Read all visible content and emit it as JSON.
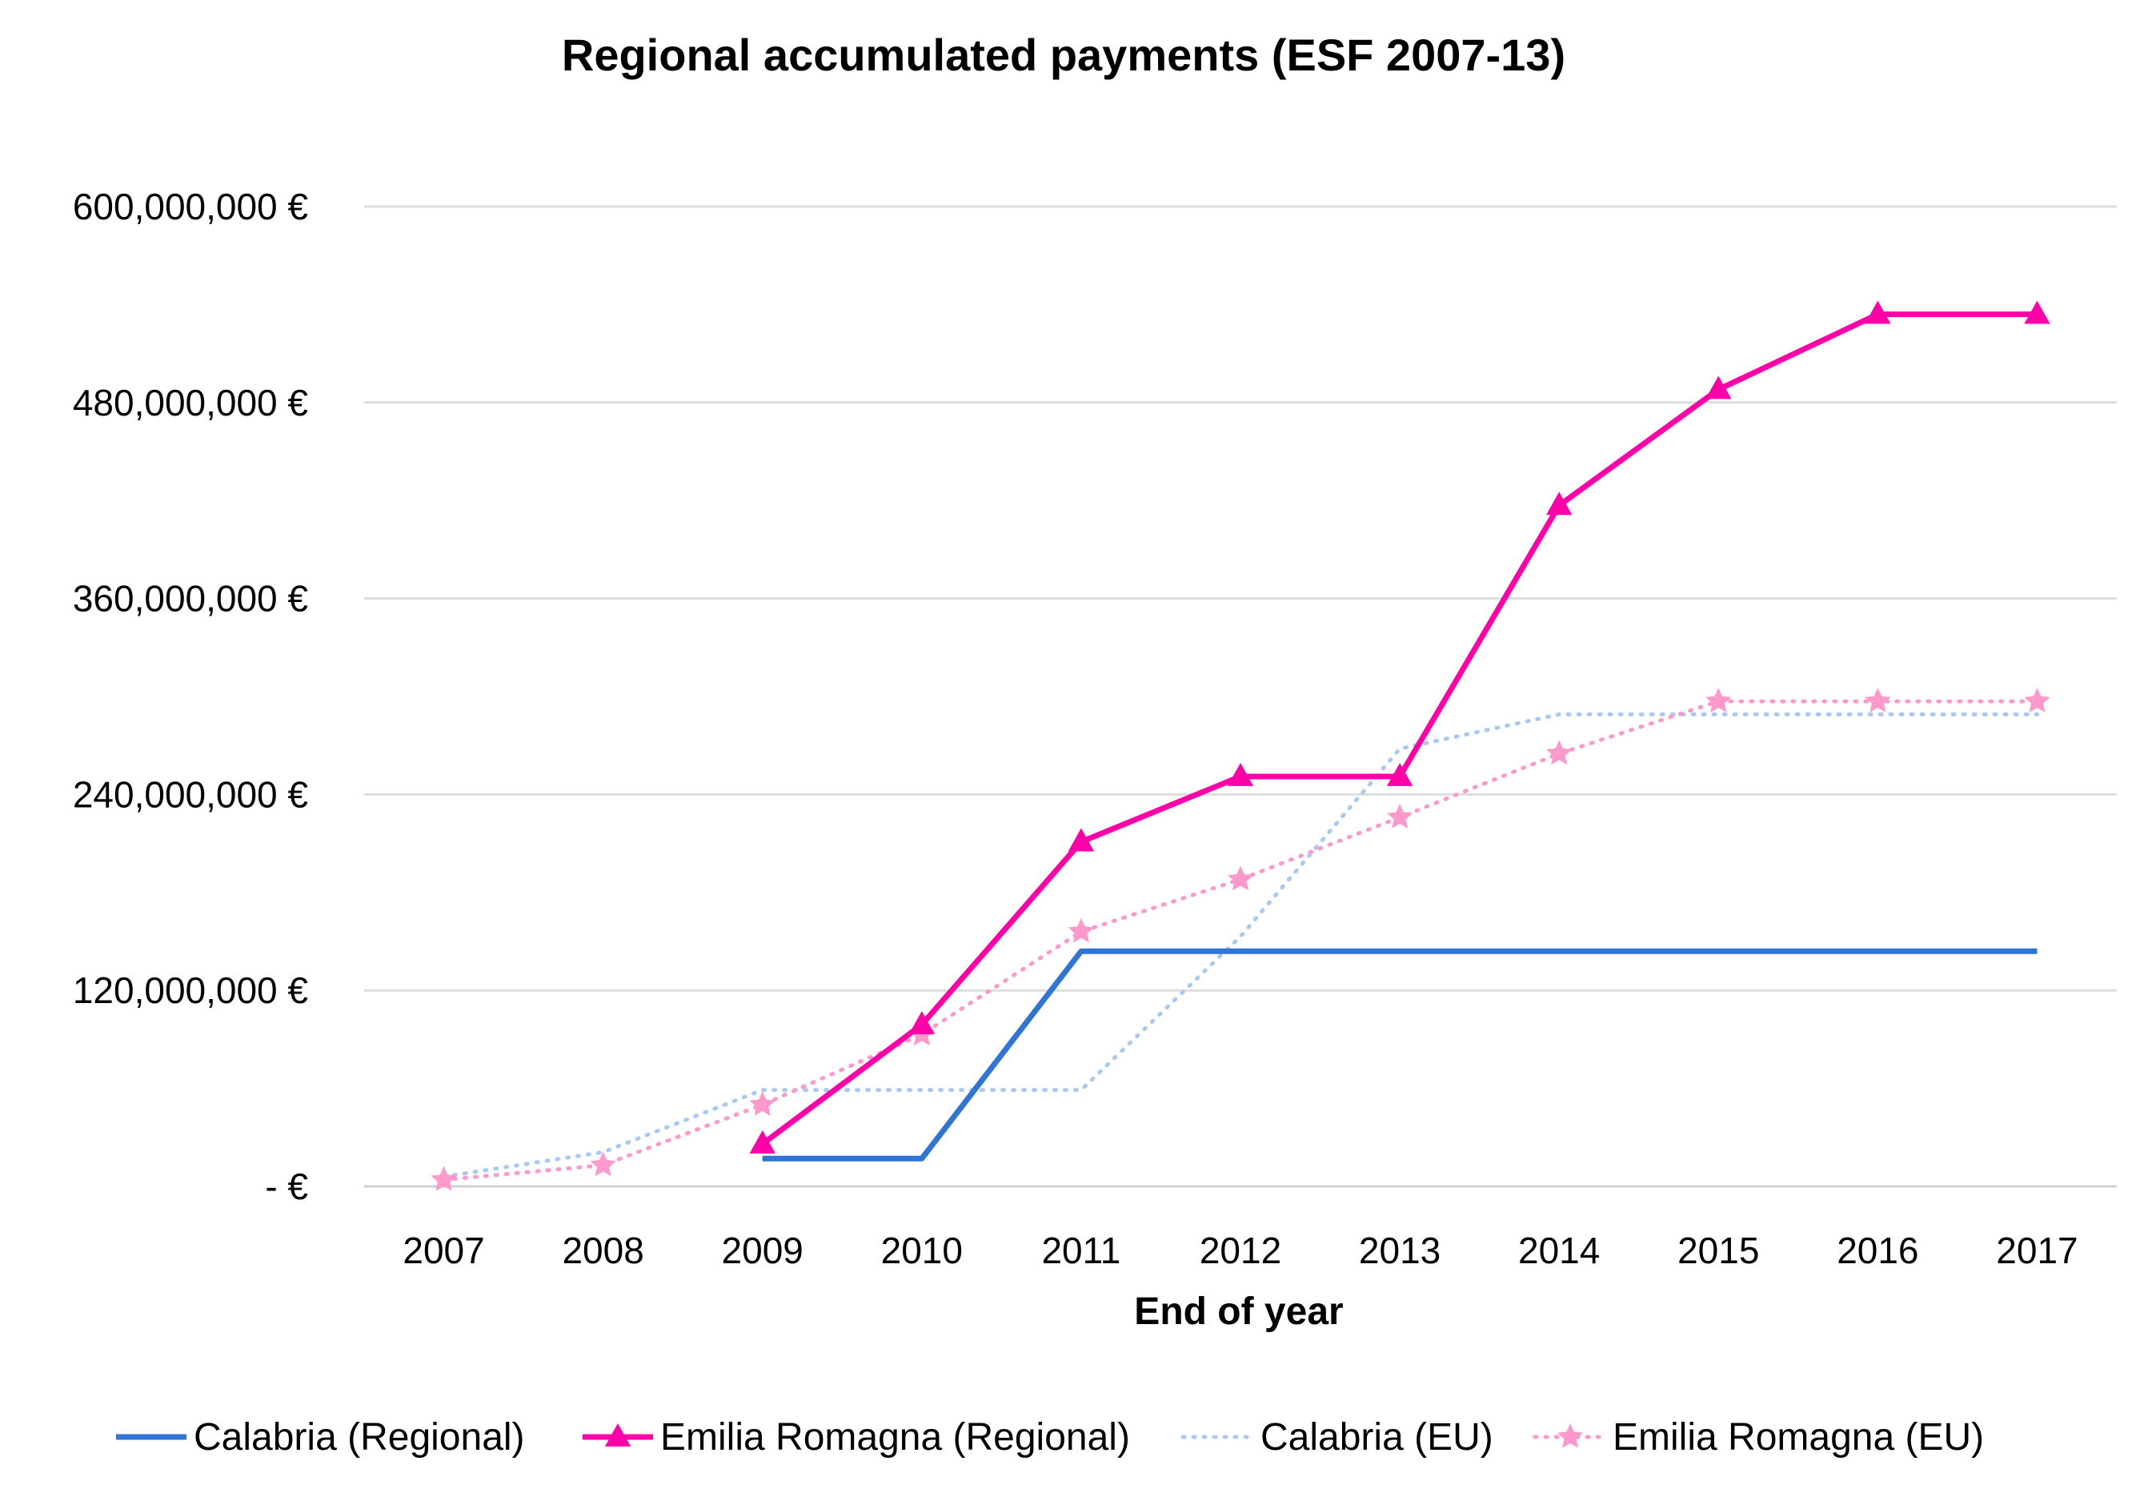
{
  "chart_data": {
    "type": "line",
    "title": "Regional accumulated payments (ESF 2007-13)",
    "xlabel": "End of year",
    "ylabel": "",
    "categories": [
      "2007",
      "2008",
      "2009",
      "2010",
      "2011",
      "2012",
      "2013",
      "2014",
      "2015",
      "2016",
      "2017"
    ],
    "yticks": [
      0,
      120000000,
      240000000,
      360000000,
      480000000,
      600000000
    ],
    "ytick_labels": [
      "- €",
      "120,000,000 €",
      "240,000,000 €",
      "360,000,000 €",
      "480,000,000 €",
      "600,000,000 €"
    ],
    "ylim": [
      0,
      600000000
    ],
    "grid": true,
    "legend_position": "bottom",
    "series": [
      {
        "name": "Calabria (Regional)",
        "color": "#2e75d6",
        "style": "solid",
        "marker": "none",
        "values": [
          null,
          null,
          17000000,
          17000000,
          144000000,
          144000000,
          144000000,
          144000000,
          144000000,
          144000000,
          144000000
        ]
      },
      {
        "name": "Emilia Romagna (Regional)",
        "color": "#ff00a8",
        "style": "solid",
        "marker": "triangle",
        "values": [
          null,
          null,
          26000000,
          99000000,
          211000000,
          251000000,
          251000000,
          417000000,
          488000000,
          534000000,
          534000000
        ]
      },
      {
        "name": "Calabria (EU)",
        "color": "#a9c8f2",
        "style": "dotted",
        "marker": "none",
        "values": [
          6000000,
          21000000,
          59000000,
          59000000,
          59000000,
          153000000,
          268000000,
          289000000,
          289000000,
          289000000,
          289000000
        ]
      },
      {
        "name": "Emilia Romagna (EU)",
        "color": "#ff99cc",
        "style": "dotted",
        "marker": "star",
        "values": [
          4000000,
          13000000,
          50000000,
          93000000,
          156000000,
          188000000,
          226000000,
          265000000,
          297000000,
          297000000,
          297000000
        ]
      }
    ]
  }
}
